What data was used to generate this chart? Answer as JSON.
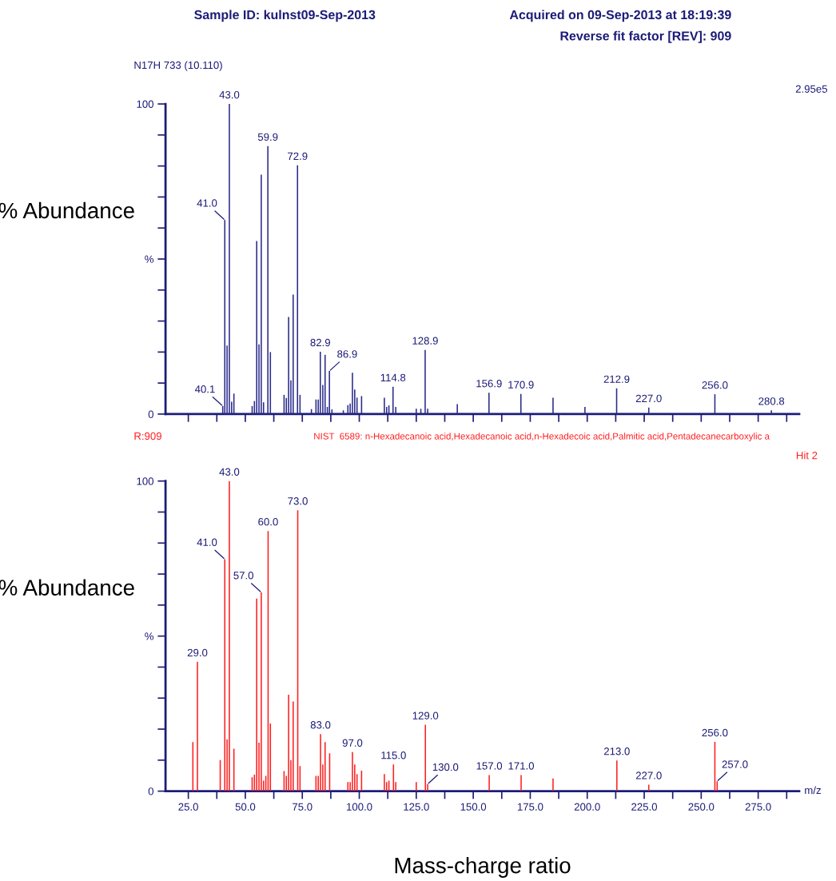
{
  "chart_data": [
    {
      "type": "bar",
      "color": "#2b2b8c",
      "x": [
        40.1,
        41.0,
        42,
        43.0,
        44,
        45,
        53,
        54,
        55,
        56,
        57,
        58,
        59.9,
        61,
        67,
        68,
        69,
        70,
        71,
        72.9,
        74,
        79,
        81,
        82,
        82.9,
        84,
        85,
        86,
        86.9,
        88,
        93,
        95,
        96,
        97,
        98,
        99,
        101,
        111,
        112,
        113,
        114.8,
        116,
        125,
        127,
        128.9,
        130,
        143,
        156.9,
        170.9,
        185,
        199,
        212.9,
        227.0,
        256.0,
        280.8
      ],
      "values": [
        2.6,
        62.6,
        22.1,
        100,
        4.0,
        6.6,
        2.6,
        4.2,
        55.8,
        22.5,
        77.2,
        3.8,
        86.4,
        20.0,
        6.2,
        5.2,
        31.3,
        10.9,
        38.5,
        80.2,
        6.2,
        1.6,
        4.7,
        4.7,
        20.1,
        9.4,
        19.1,
        2.3,
        13.9,
        1.5,
        1.2,
        2.9,
        3.4,
        13.3,
        7.9,
        5.3,
        5.8,
        5.3,
        2.3,
        2.8,
        8.8,
        2.3,
        1.7,
        1.7,
        20.7,
        1.7,
        3.2,
        6.9,
        6.5,
        5.3,
        2.3,
        8.3,
        2.1,
        6.4,
        1.2
      ],
      "xlim": [
        15,
        293
      ],
      "ylim": [
        0,
        100
      ],
      "xticks": [
        {
          "value": 25,
          "label": null
        },
        {
          "value": 37.5,
          "label": null
        },
        {
          "value": 50,
          "label": null
        },
        {
          "value": 62.5,
          "label": null
        },
        {
          "value": 75,
          "label": null
        },
        {
          "value": 87.5,
          "label": null
        },
        {
          "value": 100,
          "label": null
        },
        {
          "value": 112.5,
          "label": null
        },
        {
          "value": 125,
          "label": null
        },
        {
          "value": 137.5,
          "label": null
        },
        {
          "value": 150,
          "label": null
        },
        {
          "value": 162.5,
          "label": null
        },
        {
          "value": 175,
          "label": null
        },
        {
          "value": 187.5,
          "label": null
        },
        {
          "value": 200,
          "label": null
        },
        {
          "value": 212.5,
          "label": null
        },
        {
          "value": 225,
          "label": null
        },
        {
          "value": 237.5,
          "label": null
        },
        {
          "value": 250,
          "label": null
        },
        {
          "value": 262.5,
          "label": null
        },
        {
          "value": 275,
          "label": null
        },
        {
          "value": 287.5,
          "label": null
        }
      ],
      "yticks": [
        {
          "value": 0,
          "label": "0"
        },
        {
          "value": 10,
          "label": null
        },
        {
          "value": 20,
          "label": null
        },
        {
          "value": 30,
          "label": null
        },
        {
          "value": 40,
          "label": null
        },
        {
          "value": 50,
          "label": "%"
        },
        {
          "value": 60,
          "label": null
        },
        {
          "value": 70,
          "label": null
        },
        {
          "value": 80,
          "label": null
        },
        {
          "value": 90,
          "label": null
        },
        {
          "value": 100,
          "label": "100"
        }
      ],
      "tick_labels": "y",
      "ylabel": "% Abundance",
      "annotations": [
        "Sample ID: kulnst09-Sep-2013",
        "Acquired on 09-Sep-2013 at 18:19:39",
        "Reverse fit factor [REV]: 909",
        "N17H 733 (10.110)",
        "2.95e5",
        {
          "text": "40.1",
          "x": 40.1,
          "y": 2.6
        },
        {
          "text": "41.0",
          "x": 41.0,
          "y": 62.6
        },
        {
          "text": "43.0",
          "x": 43.0,
          "y": 100
        },
        {
          "text": "59.9",
          "x": 59.9,
          "y": 86.4
        },
        {
          "text": "72.9",
          "x": 72.9,
          "y": 80.2
        },
        {
          "text": "82.9",
          "x": 82.9,
          "y": 20.1
        },
        {
          "text": "86.9",
          "x": 86.9,
          "y": 13.9
        },
        {
          "text": "114.8",
          "x": 114.8,
          "y": 8.8
        },
        {
          "text": "128.9",
          "x": 128.9,
          "y": 20.7
        },
        {
          "text": "156.9",
          "x": 156.9,
          "y": 6.9
        },
        {
          "text": "170.9",
          "x": 170.9,
          "y": 6.5
        },
        {
          "text": "212.9",
          "x": 212.9,
          "y": 8.3
        },
        {
          "text": "227.0",
          "x": 227.0,
          "y": 2.1
        },
        {
          "text": "256.0",
          "x": 256.0,
          "y": 6.4
        },
        {
          "text": "280.8",
          "x": 280.8,
          "y": 1.2
        }
      ]
    },
    {
      "type": "bar",
      "color": "#ff2020",
      "x": [
        27,
        29.0,
        39,
        41.0,
        42,
        43.0,
        45,
        53,
        54,
        55,
        56,
        57.0,
        58,
        59,
        60.0,
        61,
        67,
        68,
        69,
        70,
        71,
        73.0,
        74,
        81,
        82,
        83.0,
        84,
        85,
        87,
        95,
        96,
        97.0,
        98,
        99,
        101,
        111,
        112,
        113,
        115.0,
        116,
        125,
        129.0,
        130.0,
        157.0,
        171.0,
        185,
        213.0,
        227.0,
        256.0,
        257.0
      ],
      "values": [
        15.8,
        41.7,
        10.0,
        74.8,
        16.7,
        100,
        13.7,
        4.5,
        5.3,
        62.1,
        15.6,
        64.1,
        3.4,
        4.9,
        83.9,
        21.8,
        6.5,
        4.9,
        31.1,
        10.0,
        28.9,
        90.6,
        8.1,
        4.9,
        4.9,
        18.4,
        8.6,
        15.8,
        12.2,
        2.9,
        2.9,
        12.6,
        8.6,
        5.5,
        6.6,
        5.5,
        2.9,
        3.4,
        8.6,
        2.9,
        2.9,
        21.4,
        2.3,
        5.2,
        5.2,
        4.1,
        9.9,
        2.1,
        15.9,
        3.2
      ],
      "xlim": [
        15,
        293
      ],
      "ylim": [
        0,
        100
      ],
      "xticks": [
        {
          "value": 25,
          "label": "25.0"
        },
        {
          "value": 37.5,
          "label": null
        },
        {
          "value": 50,
          "label": "50.0"
        },
        {
          "value": 62.5,
          "label": null
        },
        {
          "value": 75,
          "label": "75.0"
        },
        {
          "value": 87.5,
          "label": null
        },
        {
          "value": 100,
          "label": "100.0"
        },
        {
          "value": 112.5,
          "label": null
        },
        {
          "value": 125,
          "label": "125.0"
        },
        {
          "value": 137.5,
          "label": null
        },
        {
          "value": 150,
          "label": "150.0"
        },
        {
          "value": 162.5,
          "label": null
        },
        {
          "value": 175,
          "label": "175.0"
        },
        {
          "value": 187.5,
          "label": null
        },
        {
          "value": 200,
          "label": "200.0"
        },
        {
          "value": 212.5,
          "label": null
        },
        {
          "value": 225,
          "label": "225.0"
        },
        {
          "value": 237.5,
          "label": null
        },
        {
          "value": 250,
          "label": "250.0"
        },
        {
          "value": 262.5,
          "label": null
        },
        {
          "value": 275,
          "label": "275.0"
        },
        {
          "value": 287.5,
          "label": null
        }
      ],
      "yticks": [
        {
          "value": 0,
          "label": "0"
        },
        {
          "value": 10,
          "label": null
        },
        {
          "value": 20,
          "label": null
        },
        {
          "value": 30,
          "label": null
        },
        {
          "value": 40,
          "label": null
        },
        {
          "value": 50,
          "label": "%"
        },
        {
          "value": 60,
          "label": null
        },
        {
          "value": 70,
          "label": null
        },
        {
          "value": 80,
          "label": null
        },
        {
          "value": 90,
          "label": null
        },
        {
          "value": 100,
          "label": "100"
        }
      ],
      "ylabel": "% Abundance",
      "xlabel": "Mass-charge ratio",
      "annotations": [
        "R:909",
        "NIST  6589: n-Hexadecanoic acid,Hexadecanoic acid,n-Hexadecoic acid,Palmitic acid,Pentadecanecarboxylic a",
        "Hit 2",
        "m/z",
        {
          "text": "29.0",
          "x": 29.0,
          "y": 41.7
        },
        {
          "text": "41.0",
          "x": 41.0,
          "y": 74.8
        },
        {
          "text": "43.0",
          "x": 43.0,
          "y": 100
        },
        {
          "text": "57.0",
          "x": 57.0,
          "y": 64.1
        },
        {
          "text": "60.0",
          "x": 60.0,
          "y": 83.9
        },
        {
          "text": "73.0",
          "x": 73.0,
          "y": 90.6
        },
        {
          "text": "83.0",
          "x": 83.0,
          "y": 18.4
        },
        {
          "text": "97.0",
          "x": 97.0,
          "y": 12.6
        },
        {
          "text": "115.0",
          "x": 115.0,
          "y": 8.6
        },
        {
          "text": "129.0",
          "x": 129.0,
          "y": 21.4
        },
        {
          "text": "130.0",
          "x": 130.0,
          "y": 2.3
        },
        {
          "text": "157.0",
          "x": 157.0,
          "y": 5.2
        },
        {
          "text": "171.0",
          "x": 171.0,
          "y": 5.2
        },
        {
          "text": "213.0",
          "x": 213.0,
          "y": 9.9
        },
        {
          "text": "227.0",
          "x": 227.0,
          "y": 2.1
        },
        {
          "text": "256.0",
          "x": 256.0,
          "y": 15.9
        },
        {
          "text": "257.0",
          "x": 257.0,
          "y": 3.2
        }
      ]
    }
  ]
}
